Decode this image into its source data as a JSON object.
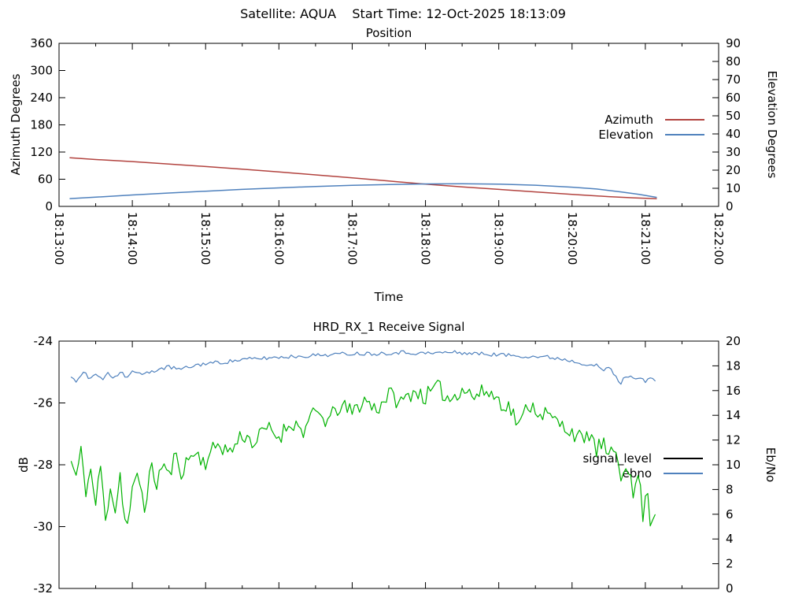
{
  "header": {
    "title": "Satellite: AQUA    Start Time: 12-Oct-2025 18:13:09"
  },
  "colors": {
    "background": "#ffffff",
    "frame": "#000000",
    "text": "#000000",
    "azimuth": "#b2433f",
    "elevation": "#4f81bd",
    "signal_green": "#00b200",
    "signal_legend_black": "#000000",
    "ebno_blue": "#4f81bd"
  },
  "chart_data": [
    {
      "type": "line",
      "title": "Position",
      "xlabel": "Time",
      "ylabel": "Azimuth Degrees",
      "y2label": "Elevation Degrees",
      "x_tick_labels": [
        "18:13:00",
        "18:14:00",
        "18:15:00",
        "18:16:00",
        "18:17:00",
        "18:18:00",
        "18:19:00",
        "18:20:00",
        "18:21:00",
        "18:22:00"
      ],
      "x_range_seconds": [
        0,
        540
      ],
      "x_major_step": 60,
      "x_minor_step": 30,
      "ylim": [
        0,
        360
      ],
      "y_tick_step": 60,
      "y2lim": [
        0,
        90
      ],
      "y2_tick_step": 10,
      "grid": false,
      "legend_position": "inside-right",
      "legend": [
        {
          "label": "Azimuth",
          "color_key": "azimuth"
        },
        {
          "label": "Elevation",
          "color_key": "elevation"
        }
      ],
      "series": [
        {
          "name": "Azimuth",
          "axis": "y1",
          "color_key": "azimuth",
          "noise": 0,
          "points": [
            [
              9,
              107.5
            ],
            [
              30,
              103.5
            ],
            [
              60,
              99
            ],
            [
              90,
              93.5
            ],
            [
              120,
              88
            ],
            [
              150,
              82
            ],
            [
              180,
              76
            ],
            [
              210,
              69.5
            ],
            [
              240,
              63
            ],
            [
              270,
              56
            ],
            [
              300,
              49
            ],
            [
              330,
              43
            ],
            [
              360,
              37.5
            ],
            [
              390,
              32
            ],
            [
              420,
              26.5
            ],
            [
              450,
              21.5
            ],
            [
              470,
              19
            ],
            [
              489,
              17
            ]
          ]
        },
        {
          "name": "Elevation",
          "axis": "y2",
          "color_key": "elevation",
          "noise": 0,
          "points": [
            [
              9,
              4.3
            ],
            [
              30,
              5.1
            ],
            [
              60,
              6.3
            ],
            [
              90,
              7.4
            ],
            [
              120,
              8.4
            ],
            [
              150,
              9.4
            ],
            [
              180,
              10.2
            ],
            [
              210,
              11.0
            ],
            [
              240,
              11.6
            ],
            [
              270,
              12.1
            ],
            [
              300,
              12.4
            ],
            [
              330,
              12.5
            ],
            [
              360,
              12.3
            ],
            [
              390,
              11.7
            ],
            [
              420,
              10.6
            ],
            [
              440,
              9.6
            ],
            [
              460,
              8.0
            ],
            [
              475,
              6.6
            ],
            [
              489,
              5.0
            ]
          ]
        }
      ]
    },
    {
      "type": "line",
      "title": "HRD_RX_1 Receive Signal",
      "xlabel": "",
      "ylabel": "dB",
      "y2label": "Eb/No",
      "x_tick_labels": [],
      "x_range_seconds": [
        0,
        540
      ],
      "x_major_step": 60,
      "x_minor_step": 30,
      "ylim": [
        -32,
        -24
      ],
      "y_tick_step": 2,
      "y2lim": [
        0,
        20
      ],
      "y2_tick_step": 2,
      "grid": false,
      "legend_position": "inside-right",
      "noise_seed": 11,
      "legend": [
        {
          "label": "signal_level",
          "color_key": "signal_legend_black"
        },
        {
          "label": "ebno",
          "color_key": "ebno_blue"
        }
      ],
      "series": [
        {
          "name": "signal_level",
          "axis": "y1",
          "color_key": "signal_green",
          "noise": 0.28,
          "points": [
            [
              10,
              -27.9
            ],
            [
              14,
              -28.4
            ],
            [
              18,
              -27.6
            ],
            [
              22,
              -28.8
            ],
            [
              26,
              -28.2
            ],
            [
              30,
              -29.3
            ],
            [
              34,
              -28.0
            ],
            [
              38,
              -29.9
            ],
            [
              42,
              -28.6
            ],
            [
              46,
              -29.5
            ],
            [
              50,
              -28.3
            ],
            [
              55,
              -30.2
            ],
            [
              60,
              -28.9
            ],
            [
              65,
              -28.3
            ],
            [
              70,
              -29.4
            ],
            [
              75,
              -28.1
            ],
            [
              80,
              -28.6
            ],
            [
              85,
              -27.9
            ],
            [
              90,
              -28.4
            ],
            [
              95,
              -27.7
            ],
            [
              100,
              -28.2
            ],
            [
              110,
              -27.6
            ],
            [
              120,
              -27.9
            ],
            [
              130,
              -27.3
            ],
            [
              140,
              -27.6
            ],
            [
              150,
              -27.0
            ],
            [
              160,
              -27.3
            ],
            [
              170,
              -26.8
            ],
            [
              180,
              -27.1
            ],
            [
              190,
              -26.6
            ],
            [
              200,
              -26.9
            ],
            [
              210,
              -26.3
            ],
            [
              220,
              -26.6
            ],
            [
              230,
              -26.1
            ],
            [
              240,
              -26.3
            ],
            [
              250,
              -25.9
            ],
            [
              260,
              -26.2
            ],
            [
              270,
              -25.7
            ],
            [
              280,
              -26.0
            ],
            [
              290,
              -25.6
            ],
            [
              300,
              -25.8
            ],
            [
              310,
              -25.5
            ],
            [
              320,
              -25.9
            ],
            [
              330,
              -25.5
            ],
            [
              340,
              -25.8
            ],
            [
              350,
              -25.6
            ],
            [
              360,
              -25.9
            ],
            [
              370,
              -26.2
            ],
            [
              377,
              -26.8
            ],
            [
              384,
              -26.0
            ],
            [
              390,
              -26.2
            ],
            [
              400,
              -26.4
            ],
            [
              410,
              -26.7
            ],
            [
              420,
              -26.9
            ],
            [
              430,
              -27.3
            ],
            [
              435,
              -26.9
            ],
            [
              440,
              -27.6
            ],
            [
              445,
              -27.2
            ],
            [
              450,
              -27.9
            ],
            [
              455,
              -27.4
            ],
            [
              460,
              -28.3
            ],
            [
              465,
              -27.8
            ],
            [
              470,
              -29.1
            ],
            [
              474,
              -28.2
            ],
            [
              478,
              -29.6
            ],
            [
              482,
              -28.8
            ],
            [
              485,
              -30.2
            ],
            [
              487,
              -29.3
            ],
            [
              489,
              -29.8
            ]
          ]
        },
        {
          "name": "ebno",
          "axis": "y2",
          "color_key": "ebno_blue",
          "noise": 0.16,
          "points": [
            [
              10,
              17.2
            ],
            [
              15,
              16.7
            ],
            [
              20,
              17.5
            ],
            [
              25,
              16.9
            ],
            [
              30,
              17.4
            ],
            [
              35,
              16.8
            ],
            [
              40,
              17.5
            ],
            [
              45,
              17.0
            ],
            [
              50,
              17.6
            ],
            [
              55,
              17.1
            ],
            [
              60,
              17.5
            ],
            [
              70,
              17.3
            ],
            [
              80,
              17.7
            ],
            [
              90,
              17.9
            ],
            [
              100,
              17.7
            ],
            [
              110,
              18.0
            ],
            [
              120,
              18.2
            ],
            [
              135,
              18.3
            ],
            [
              150,
              18.5
            ],
            [
              165,
              18.6
            ],
            [
              180,
              18.7
            ],
            [
              200,
              18.8
            ],
            [
              220,
              18.9
            ],
            [
              240,
              19.0
            ],
            [
              260,
              19.0
            ],
            [
              280,
              19.1
            ],
            [
              300,
              19.0
            ],
            [
              320,
              19.1
            ],
            [
              340,
              19.0
            ],
            [
              360,
              18.9
            ],
            [
              380,
              18.8
            ],
            [
              400,
              18.7
            ],
            [
              410,
              18.6
            ],
            [
              420,
              18.4
            ],
            [
              430,
              18.2
            ],
            [
              440,
              18.0
            ],
            [
              445,
              17.6
            ],
            [
              450,
              17.9
            ],
            [
              455,
              17.2
            ],
            [
              460,
              16.6
            ],
            [
              465,
              17.3
            ],
            [
              470,
              16.9
            ],
            [
              475,
              17.2
            ],
            [
              480,
              16.8
            ],
            [
              485,
              17.0
            ],
            [
              489,
              16.7
            ]
          ]
        }
      ]
    }
  ]
}
